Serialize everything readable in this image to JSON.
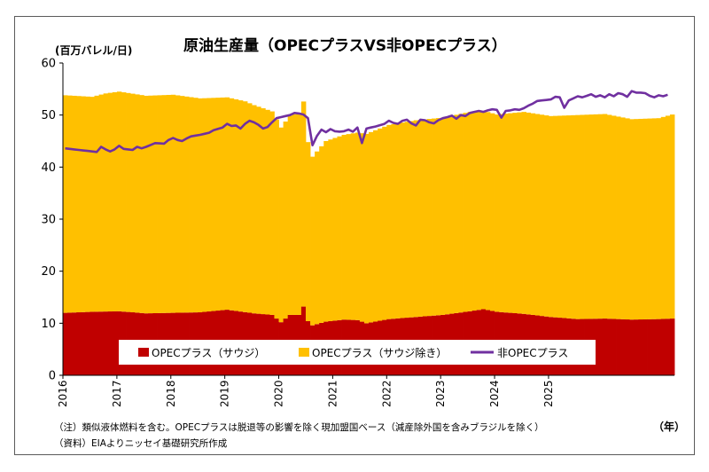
{
  "chart_data": {
    "type": "bar",
    "title": "原油生産量（OPECプラスVS非OPECプラス）",
    "ylabel": "(百万バレル/日)",
    "xlabel": "（年）",
    "ylim": [
      0,
      60
    ],
    "yticks": [
      0,
      10,
      20,
      30,
      40,
      50,
      60
    ],
    "xticks": [
      "2016",
      "2017",
      "2018",
      "2019",
      "2020",
      "2021",
      "2022",
      "2023",
      "2024",
      "2025"
    ],
    "stacked": true,
    "grid": false,
    "legend_position": "bottom-inside",
    "series": [
      {
        "name": "OPECプラス（サウジ）",
        "kind": "bar",
        "color": "#c00000",
        "anchors": [
          [
            0,
            12.0
          ],
          [
            6,
            12.2
          ],
          [
            12,
            12.3
          ],
          [
            18,
            11.9
          ],
          [
            24,
            12.0
          ],
          [
            30,
            12.1
          ],
          [
            36,
            12.6
          ],
          [
            42,
            11.9
          ],
          [
            46,
            11.6
          ],
          [
            48,
            10.2
          ],
          [
            50,
            11.6
          ],
          [
            52,
            11.6
          ],
          [
            53,
            13.2
          ],
          [
            54,
            10.4
          ],
          [
            55,
            9.6
          ],
          [
            58,
            10.3
          ],
          [
            62,
            10.7
          ],
          [
            65,
            10.6
          ],
          [
            67,
            10.0
          ],
          [
            72,
            10.8
          ],
          [
            78,
            11.2
          ],
          [
            84,
            11.6
          ],
          [
            90,
            12.3
          ],
          [
            93,
            12.7
          ],
          [
            96,
            12.2
          ],
          [
            102,
            11.8
          ],
          [
            108,
            11.2
          ],
          [
            114,
            10.8
          ],
          [
            120,
            10.9
          ],
          [
            126,
            10.7
          ],
          [
            132,
            10.8
          ],
          [
            135,
            10.9
          ]
        ]
      },
      {
        "name": "OPECプラス（サウジ除き）",
        "kind": "bar",
        "color": "#ffc000",
        "anchors": [
          [
            0,
            41.8
          ],
          [
            6,
            41.3
          ],
          [
            9,
            41.9
          ],
          [
            12,
            42.2
          ],
          [
            18,
            41.8
          ],
          [
            24,
            41.9
          ],
          [
            30,
            41.1
          ],
          [
            36,
            40.8
          ],
          [
            40,
            40.5
          ],
          [
            42,
            40.0
          ],
          [
            46,
            39.1
          ],
          [
            48,
            37.4
          ],
          [
            50,
            38.3
          ],
          [
            52,
            38.8
          ],
          [
            53,
            39.4
          ],
          [
            54,
            34.4
          ],
          [
            55,
            32.4
          ],
          [
            58,
            34.7
          ],
          [
            62,
            35.5
          ],
          [
            66,
            36.2
          ],
          [
            72,
            37.3
          ],
          [
            78,
            37.8
          ],
          [
            84,
            37.9
          ],
          [
            90,
            38.3
          ],
          [
            96,
            37.9
          ],
          [
            102,
            38.8
          ],
          [
            108,
            38.6
          ],
          [
            114,
            39.2
          ],
          [
            120,
            39.3
          ],
          [
            126,
            38.5
          ],
          [
            132,
            38.6
          ],
          [
            135,
            39.2
          ]
        ]
      },
      {
        "name": "非OPECプラス",
        "kind": "line",
        "color": "#7030a0",
        "anchors": [
          [
            0,
            43.6
          ],
          [
            3,
            43.3
          ],
          [
            6,
            43.0
          ],
          [
            7,
            42.9
          ],
          [
            8,
            43.9
          ],
          [
            9,
            43.4
          ],
          [
            10,
            43.0
          ],
          [
            11,
            43.4
          ],
          [
            12,
            44.1
          ],
          [
            13,
            43.5
          ],
          [
            15,
            43.3
          ],
          [
            16,
            43.9
          ],
          [
            17,
            43.6
          ],
          [
            18,
            43.9
          ],
          [
            20,
            44.6
          ],
          [
            22,
            44.5
          ],
          [
            23,
            45.2
          ],
          [
            24,
            45.6
          ],
          [
            25,
            45.2
          ],
          [
            26,
            45.0
          ],
          [
            27,
            45.5
          ],
          [
            28,
            45.9
          ],
          [
            30,
            46.2
          ],
          [
            32,
            46.6
          ],
          [
            33,
            47.1
          ],
          [
            35,
            47.6
          ],
          [
            36,
            48.3
          ],
          [
            37,
            47.9
          ],
          [
            38,
            48.0
          ],
          [
            39,
            47.4
          ],
          [
            40,
            48.3
          ],
          [
            41,
            48.9
          ],
          [
            42,
            48.6
          ],
          [
            43,
            48.1
          ],
          [
            44,
            47.4
          ],
          [
            45,
            47.7
          ],
          [
            46,
            48.6
          ],
          [
            47,
            49.4
          ],
          [
            48,
            49.6
          ],
          [
            50,
            50.0
          ],
          [
            51,
            50.4
          ],
          [
            52,
            50.3
          ],
          [
            53,
            50.1
          ],
          [
            54,
            49.4
          ],
          [
            55,
            44.2
          ],
          [
            56,
            46.0
          ],
          [
            57,
            47.2
          ],
          [
            58,
            46.7
          ],
          [
            59,
            47.3
          ],
          [
            60,
            46.9
          ],
          [
            61,
            46.8
          ],
          [
            62,
            46.9
          ],
          [
            63,
            47.2
          ],
          [
            64,
            46.8
          ],
          [
            65,
            47.6
          ],
          [
            66,
            44.6
          ],
          [
            67,
            47.4
          ],
          [
            69,
            47.8
          ],
          [
            71,
            48.3
          ],
          [
            72,
            48.9
          ],
          [
            73,
            48.5
          ],
          [
            74,
            48.3
          ],
          [
            75,
            48.9
          ],
          [
            76,
            49.1
          ],
          [
            77,
            48.4
          ],
          [
            78,
            48.0
          ],
          [
            79,
            49.1
          ],
          [
            80,
            49.0
          ],
          [
            81,
            48.6
          ],
          [
            82,
            48.4
          ],
          [
            83,
            49.0
          ],
          [
            84,
            49.4
          ],
          [
            85,
            49.6
          ],
          [
            86,
            49.9
          ],
          [
            87,
            49.3
          ],
          [
            88,
            50.0
          ],
          [
            89,
            49.8
          ],
          [
            90,
            50.4
          ],
          [
            91,
            50.6
          ],
          [
            92,
            50.8
          ],
          [
            93,
            50.6
          ],
          [
            94,
            50.9
          ],
          [
            95,
            51.1
          ],
          [
            96,
            51.0
          ],
          [
            97,
            49.5
          ],
          [
            98,
            50.8
          ],
          [
            99,
            50.9
          ],
          [
            100,
            51.1
          ],
          [
            101,
            51.0
          ],
          [
            102,
            51.3
          ],
          [
            103,
            51.8
          ],
          [
            104,
            52.2
          ],
          [
            105,
            52.7
          ],
          [
            106,
            52.8
          ],
          [
            107,
            52.9
          ],
          [
            108,
            53.0
          ],
          [
            109,
            53.5
          ],
          [
            110,
            53.4
          ],
          [
            111,
            51.4
          ],
          [
            112,
            52.8
          ],
          [
            113,
            53.2
          ],
          [
            114,
            53.6
          ],
          [
            115,
            53.4
          ],
          [
            116,
            53.7
          ],
          [
            117,
            54.0
          ],
          [
            118,
            53.5
          ],
          [
            119,
            53.8
          ],
          [
            120,
            53.4
          ],
          [
            121,
            54.0
          ],
          [
            122,
            53.6
          ],
          [
            123,
            54.2
          ],
          [
            124,
            54.0
          ],
          [
            125,
            53.5
          ],
          [
            126,
            54.6
          ],
          [
            127,
            54.3
          ],
          [
            128,
            54.3
          ],
          [
            129,
            54.2
          ],
          [
            130,
            53.7
          ],
          [
            131,
            53.4
          ],
          [
            132,
            53.8
          ],
          [
            133,
            53.6
          ],
          [
            134,
            53.9
          ]
        ]
      }
    ],
    "notes": [
      "（注）類似液体燃料を含む。OPECプラスは脱退等の影響を除く現加盟国ベース（減産除外国を含みブラジルを除く）",
      "（資料）EIAよりニッセイ基礎研究所作成"
    ]
  },
  "axis": {
    "axis_color": "#000000"
  }
}
